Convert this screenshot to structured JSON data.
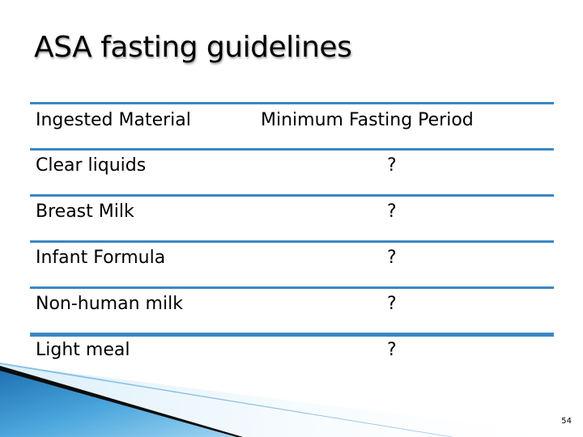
{
  "slide": {
    "title": "ASA fasting guidelines",
    "page_number": "54"
  },
  "table": {
    "headers": [
      "Ingested Material",
      "Minimum Fasting Period"
    ],
    "rows": [
      {
        "material": "Clear liquids",
        "period": "?"
      },
      {
        "material": "Breast Milk",
        "period": "?"
      },
      {
        "material": "Infant Formula",
        "period": "?"
      },
      {
        "material": "Non-human milk",
        "period": "?"
      },
      {
        "material": "Light meal",
        "period": "?"
      }
    ]
  },
  "colors": {
    "rule": "#3a88c4",
    "accent_dark": "#0b3f6e",
    "accent_light": "#8cc8ee"
  }
}
